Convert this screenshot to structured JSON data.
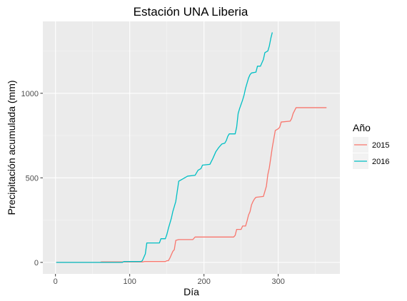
{
  "chart_data": {
    "type": "line",
    "title": "Estación UNA Liberia",
    "xlabel": "Día",
    "ylabel": "Precipitación acumulada (mm)",
    "xlim": [
      -17,
      383
    ],
    "ylim": [
      -68,
      1425
    ],
    "x_ticks": [
      0,
      100,
      200,
      300
    ],
    "y_ticks": [
      0,
      500,
      1000
    ],
    "x_tick_labels": [
      "0",
      "100",
      "200",
      "300"
    ],
    "y_tick_labels": [
      "0",
      "500",
      "1000"
    ],
    "grid": true,
    "legend_position": "right",
    "legend_title": "Año",
    "series": [
      {
        "name": "2015",
        "color": "#F8766D",
        "points": [
          [
            1,
            0
          ],
          [
            60,
            0
          ],
          [
            62,
            3
          ],
          [
            118,
            3
          ],
          [
            120,
            5
          ],
          [
            148,
            5
          ],
          [
            150,
            10
          ],
          [
            152,
            10
          ],
          [
            154,
            25
          ],
          [
            156,
            45
          ],
          [
            158,
            65
          ],
          [
            160,
            75
          ],
          [
            162,
            130
          ],
          [
            166,
            135
          ],
          [
            185,
            135
          ],
          [
            188,
            150
          ],
          [
            240,
            150
          ],
          [
            242,
            160
          ],
          [
            244,
            195
          ],
          [
            250,
            195
          ],
          [
            252,
            215
          ],
          [
            256,
            215
          ],
          [
            258,
            245
          ],
          [
            260,
            280
          ],
          [
            262,
            300
          ],
          [
            264,
            340
          ],
          [
            266,
            360
          ],
          [
            268,
            375
          ],
          [
            270,
            385
          ],
          [
            280,
            390
          ],
          [
            284,
            450
          ],
          [
            286,
            520
          ],
          [
            288,
            560
          ],
          [
            290,
            620
          ],
          [
            292,
            680
          ],
          [
            294,
            730
          ],
          [
            296,
            780
          ],
          [
            300,
            790
          ],
          [
            302,
            800
          ],
          [
            304,
            830
          ],
          [
            316,
            835
          ],
          [
            318,
            850
          ],
          [
            320,
            880
          ],
          [
            324,
            915
          ],
          [
            365,
            915
          ]
        ]
      },
      {
        "name": "2016",
        "color": "#00BFC4",
        "points": [
          [
            1,
            0
          ],
          [
            90,
            0
          ],
          [
            92,
            5
          ],
          [
            115,
            5
          ],
          [
            117,
            10
          ],
          [
            119,
            30
          ],
          [
            121,
            50
          ],
          [
            123,
            115
          ],
          [
            140,
            115
          ],
          [
            142,
            140
          ],
          [
            148,
            140
          ],
          [
            150,
            165
          ],
          [
            152,
            200
          ],
          [
            154,
            230
          ],
          [
            156,
            260
          ],
          [
            158,
            300
          ],
          [
            160,
            330
          ],
          [
            162,
            360
          ],
          [
            164,
            420
          ],
          [
            166,
            480
          ],
          [
            170,
            490
          ],
          [
            174,
            500
          ],
          [
            178,
            510
          ],
          [
            188,
            515
          ],
          [
            192,
            545
          ],
          [
            196,
            555
          ],
          [
            198,
            575
          ],
          [
            208,
            580
          ],
          [
            212,
            615
          ],
          [
            216,
            655
          ],
          [
            220,
            680
          ],
          [
            224,
            700
          ],
          [
            228,
            705
          ],
          [
            230,
            720
          ],
          [
            232,
            745
          ],
          [
            234,
            760
          ],
          [
            242,
            760
          ],
          [
            244,
            800
          ],
          [
            246,
            880
          ],
          [
            248,
            910
          ],
          [
            250,
            935
          ],
          [
            252,
            960
          ],
          [
            254,
            990
          ],
          [
            256,
            1030
          ],
          [
            258,
            1060
          ],
          [
            260,
            1090
          ],
          [
            262,
            1110
          ],
          [
            264,
            1120
          ],
          [
            270,
            1125
          ],
          [
            272,
            1160
          ],
          [
            276,
            1160
          ],
          [
            278,
            1180
          ],
          [
            280,
            1200
          ],
          [
            282,
            1240
          ],
          [
            286,
            1250
          ],
          [
            288,
            1280
          ],
          [
            290,
            1325
          ],
          [
            292,
            1360
          ]
        ]
      }
    ]
  }
}
